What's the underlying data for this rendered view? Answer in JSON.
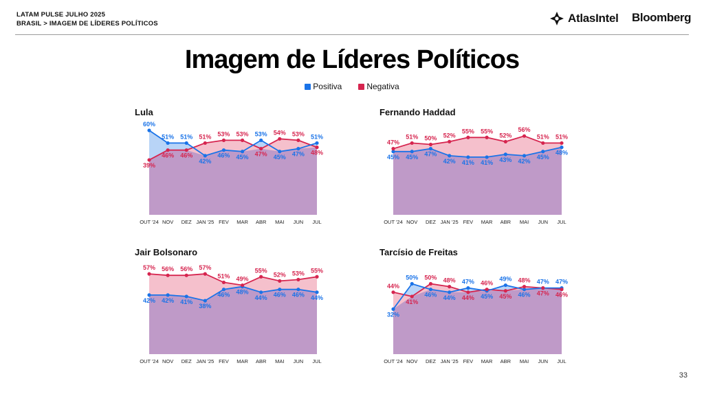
{
  "header": {
    "line1": "LATAM PULSE JULHO 2025",
    "line2": "BRASIL > IMAGEM DE LÍDERES POLÍTICOS"
  },
  "logos": {
    "atlas": "AtlasIntel",
    "bloomberg": "Bloomberg"
  },
  "title": "Imagem de Líderes Políticos",
  "legend": {
    "positive": "Positiva",
    "negative": "Negativa"
  },
  "colors": {
    "positive": "#1a73e8",
    "negative": "#d6254f",
    "overlap": "#bf9ac8",
    "pos_fill": "#b8d4f7",
    "neg_fill": "#f5c0cc"
  },
  "page_number": "33",
  "chart_data": [
    {
      "type": "area",
      "title": "Lula",
      "categories": [
        "OUT '24",
        "NOV",
        "DEZ",
        "JAN '25",
        "FEV",
        "MAR",
        "ABR",
        "MAI",
        "JUN",
        "JUL"
      ],
      "series": [
        {
          "name": "Positiva",
          "values": [
            60,
            51,
            51,
            42,
            46,
            45,
            53,
            45,
            47,
            51
          ]
        },
        {
          "name": "Negativa",
          "values": [
            39,
            46,
            46,
            51,
            53,
            53,
            47,
            54,
            53,
            48
          ]
        }
      ],
      "ylim": [
        0,
        70
      ]
    },
    {
      "type": "area",
      "title": "Fernando Haddad",
      "categories": [
        "OUT '24",
        "NOV",
        "DEZ",
        "JAN '25",
        "FEV",
        "MAR",
        "ABR",
        "MAI",
        "JUN",
        "JUL"
      ],
      "series": [
        {
          "name": "Positiva",
          "values": [
            45,
            45,
            47,
            42,
            41,
            41,
            43,
            42,
            45,
            48
          ]
        },
        {
          "name": "Negativa",
          "values": [
            47,
            51,
            50,
            52,
            55,
            55,
            52,
            56,
            51,
            51
          ]
        }
      ],
      "ylim": [
        0,
        70
      ]
    },
    {
      "type": "area",
      "title": "Jair Bolsonaro",
      "categories": [
        "OUT '24",
        "NOV",
        "DEZ",
        "JAN '25",
        "FEV",
        "MAR",
        "ABR",
        "MAI",
        "JUN",
        "JUL"
      ],
      "series": [
        {
          "name": "Positiva",
          "values": [
            42,
            42,
            41,
            38,
            46,
            48,
            44,
            46,
            46,
            44
          ]
        },
        {
          "name": "Negativa",
          "values": [
            57,
            56,
            56,
            57,
            51,
            49,
            55,
            52,
            53,
            55
          ]
        }
      ],
      "ylim": [
        0,
        70
      ]
    },
    {
      "type": "area",
      "title": "Tarcísio de Freitas",
      "categories": [
        "OUT '24",
        "NOV",
        "DEZ",
        "JAN '25",
        "FEV",
        "MAR",
        "ABR",
        "MAI",
        "JUN",
        "JUL"
      ],
      "series": [
        {
          "name": "Positiva",
          "values": [
            32,
            50,
            46,
            44,
            47,
            45,
            49,
            46,
            47,
            47
          ]
        },
        {
          "name": "Negativa",
          "values": [
            44,
            41,
            50,
            48,
            44,
            46,
            45,
            48,
            47,
            46
          ]
        }
      ],
      "ylim": [
        0,
        70
      ]
    }
  ]
}
